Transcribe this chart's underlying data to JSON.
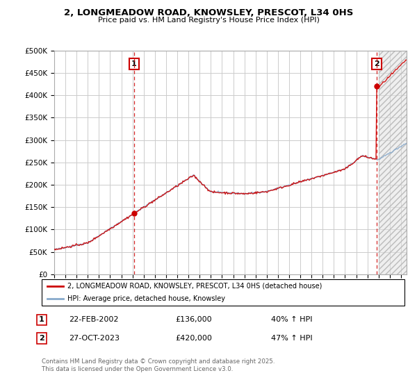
{
  "title": "2, LONGMEADOW ROAD, KNOWSLEY, PRESCOT, L34 0HS",
  "subtitle": "Price paid vs. HM Land Registry's House Price Index (HPI)",
  "ylim": [
    0,
    500000
  ],
  "xlim_start": 1995.0,
  "xlim_end": 2026.5,
  "red_line_color": "#cc0000",
  "blue_line_color": "#88aacc",
  "background_color": "#ffffff",
  "grid_color": "#cccccc",
  "point1_x": 2002.14,
  "point1_y": 136000,
  "point1_label": "1",
  "point1_date": "22-FEB-2002",
  "point1_price": "£136,000",
  "point1_hpi": "40% ↑ HPI",
  "point2_x": 2023.82,
  "point2_y": 420000,
  "point2_label": "2",
  "point2_date": "27-OCT-2023",
  "point2_price": "£420,000",
  "point2_hpi": "47% ↑ HPI",
  "legend_line1": "2, LONGMEADOW ROAD, KNOWSLEY, PRESCOT, L34 0HS (detached house)",
  "legend_line2": "HPI: Average price, detached house, Knowsley",
  "footnote": "Contains HM Land Registry data © Crown copyright and database right 2025.\nThis data is licensed under the Open Government Licence v3.0."
}
